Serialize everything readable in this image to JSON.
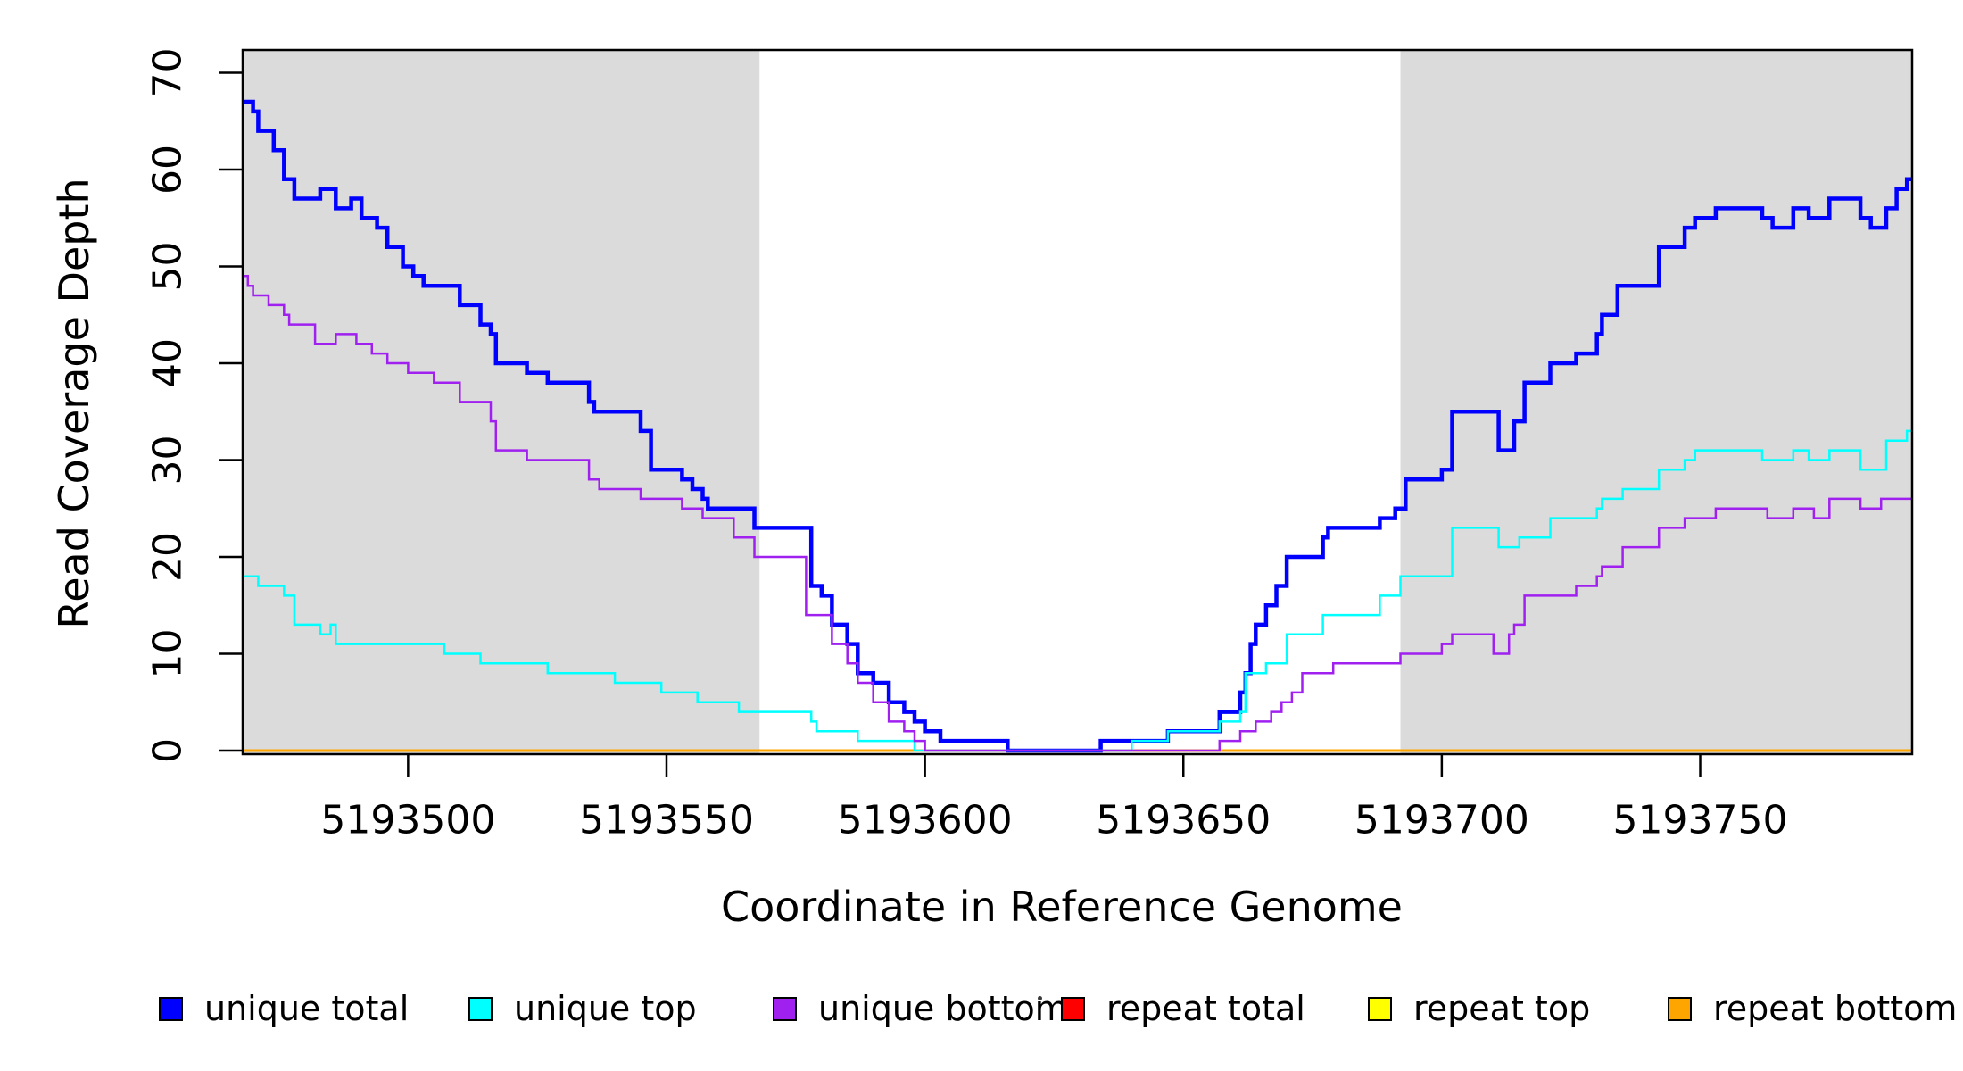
{
  "chart_data": {
    "type": "line",
    "subtype": "step-after",
    "title": "",
    "x_axis": {
      "label": "Coordinate in Reference Genome",
      "range": [
        5193468,
        5193791
      ],
      "ticks": [
        5193500,
        5193550,
        5193600,
        5193650,
        5193700,
        5193750
      ]
    },
    "y_axis": {
      "label": "Read Coverage Depth",
      "range": [
        -0.37,
        72.35
      ],
      "ticks": [
        0,
        10,
        20,
        30,
        40,
        50,
        60,
        70
      ]
    },
    "grid": "off",
    "plot_background": "#ffffff",
    "shaded_band_color": "#dbdbdb",
    "shaded_regions": [
      {
        "from": 5193468,
        "to": 5193568
      },
      {
        "from": 5193692,
        "to": 5193791
      }
    ],
    "axis_color": "#000000",
    "legend_position": "bottom",
    "draw_order": [
      "repeat total",
      "repeat top",
      "repeat bottom",
      "unique total",
      "unique top",
      "unique bottom"
    ],
    "series": [
      {
        "name": "unique total",
        "color": "#0000ff",
        "line_width": 4.5,
        "points": [
          [
            5193468,
            67
          ],
          [
            5193470,
            66
          ],
          [
            5193471,
            64
          ],
          [
            5193474,
            62
          ],
          [
            5193476,
            59
          ],
          [
            5193478,
            57
          ],
          [
            5193483,
            58
          ],
          [
            5193486,
            56
          ],
          [
            5193489,
            57
          ],
          [
            5193491,
            55
          ],
          [
            5193494,
            54
          ],
          [
            5193496,
            52
          ],
          [
            5193499,
            50
          ],
          [
            5193501,
            49
          ],
          [
            5193503,
            48
          ],
          [
            5193510,
            46
          ],
          [
            5193514,
            44
          ],
          [
            5193516,
            43
          ],
          [
            5193517,
            40
          ],
          [
            5193523,
            39
          ],
          [
            5193527,
            38
          ],
          [
            5193535,
            36
          ],
          [
            5193536,
            35
          ],
          [
            5193545,
            33
          ],
          [
            5193547,
            29
          ],
          [
            5193553,
            28
          ],
          [
            5193555,
            27
          ],
          [
            5193557,
            26
          ],
          [
            5193558,
            25
          ],
          [
            5193567,
            23
          ],
          [
            5193578,
            17
          ],
          [
            5193580,
            16
          ],
          [
            5193582,
            13
          ],
          [
            5193585,
            11
          ],
          [
            5193587,
            8
          ],
          [
            5193590,
            7
          ],
          [
            5193593,
            5
          ],
          [
            5193596,
            4
          ],
          [
            5193598,
            3
          ],
          [
            5193600,
            2
          ],
          [
            5193603,
            1
          ],
          [
            5193616,
            0
          ],
          [
            5193634,
            1
          ],
          [
            5193647,
            2
          ],
          [
            5193657,
            4
          ],
          [
            5193661,
            6
          ],
          [
            5193662,
            8
          ],
          [
            5193663,
            11
          ],
          [
            5193664,
            13
          ],
          [
            5193666,
            15
          ],
          [
            5193668,
            17
          ],
          [
            5193670,
            20
          ],
          [
            5193677,
            22
          ],
          [
            5193678,
            23
          ],
          [
            5193688,
            24
          ],
          [
            5193691,
            25
          ],
          [
            5193693,
            28
          ],
          [
            5193700,
            29
          ],
          [
            5193702,
            35
          ],
          [
            5193711,
            31
          ],
          [
            5193714,
            34
          ],
          [
            5193716,
            38
          ],
          [
            5193721,
            40
          ],
          [
            5193726,
            41
          ],
          [
            5193730,
            43
          ],
          [
            5193731,
            45
          ],
          [
            5193734,
            48
          ],
          [
            5193742,
            52
          ],
          [
            5193747,
            54
          ],
          [
            5193749,
            55
          ],
          [
            5193753,
            56
          ],
          [
            5193762,
            55
          ],
          [
            5193764,
            54
          ],
          [
            5193768,
            56
          ],
          [
            5193771,
            55
          ],
          [
            5193775,
            57
          ],
          [
            5193781,
            55
          ],
          [
            5193783,
            54
          ],
          [
            5193786,
            56
          ],
          [
            5193788,
            58
          ],
          [
            5193790,
            59
          ],
          [
            5193791,
            59
          ]
        ]
      },
      {
        "name": "unique top",
        "color": "#00ffff",
        "line_width": 2.5,
        "points": [
          [
            5193468,
            18
          ],
          [
            5193471,
            17
          ],
          [
            5193476,
            16
          ],
          [
            5193478,
            13
          ],
          [
            5193483,
            12
          ],
          [
            5193485,
            13
          ],
          [
            5193486,
            11
          ],
          [
            5193507,
            10
          ],
          [
            5193514,
            9
          ],
          [
            5193527,
            8
          ],
          [
            5193540,
            7
          ],
          [
            5193549,
            6
          ],
          [
            5193556,
            5
          ],
          [
            5193564,
            4
          ],
          [
            5193578,
            3
          ],
          [
            5193579,
            2
          ],
          [
            5193587,
            1
          ],
          [
            5193598,
            0
          ],
          [
            5193640,
            1
          ],
          [
            5193647,
            2
          ],
          [
            5193657,
            3
          ],
          [
            5193661,
            4
          ],
          [
            5193662,
            8
          ],
          [
            5193666,
            9
          ],
          [
            5193670,
            12
          ],
          [
            5193677,
            14
          ],
          [
            5193688,
            16
          ],
          [
            5193692,
            18
          ],
          [
            5193702,
            23
          ],
          [
            5193711,
            21
          ],
          [
            5193715,
            22
          ],
          [
            5193721,
            24
          ],
          [
            5193730,
            25
          ],
          [
            5193731,
            26
          ],
          [
            5193735,
            27
          ],
          [
            5193742,
            29
          ],
          [
            5193747,
            30
          ],
          [
            5193749,
            31
          ],
          [
            5193762,
            30
          ],
          [
            5193768,
            31
          ],
          [
            5193771,
            30
          ],
          [
            5193775,
            31
          ],
          [
            5193781,
            29
          ],
          [
            5193786,
            32
          ],
          [
            5193790,
            33
          ],
          [
            5193791,
            33
          ]
        ]
      },
      {
        "name": "unique bottom",
        "color": "#a020f0",
        "line_width": 2.5,
        "points": [
          [
            5193468,
            49
          ],
          [
            5193469,
            48
          ],
          [
            5193470,
            47
          ],
          [
            5193473,
            46
          ],
          [
            5193476,
            45
          ],
          [
            5193477,
            44
          ],
          [
            5193482,
            42
          ],
          [
            5193486,
            43
          ],
          [
            5193490,
            42
          ],
          [
            5193493,
            41
          ],
          [
            5193496,
            40
          ],
          [
            5193500,
            39
          ],
          [
            5193505,
            38
          ],
          [
            5193510,
            36
          ],
          [
            5193516,
            34
          ],
          [
            5193517,
            31
          ],
          [
            5193523,
            30
          ],
          [
            5193535,
            28
          ],
          [
            5193537,
            27
          ],
          [
            5193545,
            26
          ],
          [
            5193553,
            25
          ],
          [
            5193557,
            24
          ],
          [
            5193563,
            22
          ],
          [
            5193567,
            20
          ],
          [
            5193577,
            14
          ],
          [
            5193582,
            11
          ],
          [
            5193585,
            9
          ],
          [
            5193587,
            7
          ],
          [
            5193590,
            5
          ],
          [
            5193593,
            3
          ],
          [
            5193596,
            2
          ],
          [
            5193598,
            1
          ],
          [
            5193600,
            0
          ],
          [
            5193657,
            1
          ],
          [
            5193661,
            2
          ],
          [
            5193664,
            3
          ],
          [
            5193667,
            4
          ],
          [
            5193669,
            5
          ],
          [
            5193671,
            6
          ],
          [
            5193673,
            8
          ],
          [
            5193679,
            9
          ],
          [
            5193692,
            10
          ],
          [
            5193700,
            11
          ],
          [
            5193702,
            12
          ],
          [
            5193710,
            10
          ],
          [
            5193713,
            12
          ],
          [
            5193714,
            13
          ],
          [
            5193716,
            16
          ],
          [
            5193726,
            17
          ],
          [
            5193730,
            18
          ],
          [
            5193731,
            19
          ],
          [
            5193735,
            21
          ],
          [
            5193742,
            23
          ],
          [
            5193747,
            24
          ],
          [
            5193753,
            25
          ],
          [
            5193763,
            24
          ],
          [
            5193768,
            25
          ],
          [
            5193772,
            24
          ],
          [
            5193775,
            26
          ],
          [
            5193781,
            25
          ],
          [
            5193785,
            26
          ],
          [
            5193791,
            26
          ]
        ]
      },
      {
        "name": "repeat total",
        "color": "#ff0000",
        "line_width": 2.5,
        "points": [
          [
            5193468,
            0
          ],
          [
            5193791,
            0
          ]
        ]
      },
      {
        "name": "repeat top",
        "color": "#ffff00",
        "line_width": 2.5,
        "points": [
          [
            5193468,
            0
          ],
          [
            5193791,
            0
          ]
        ]
      },
      {
        "name": "repeat bottom",
        "color": "#ffa500",
        "line_width": 3,
        "points": [
          [
            5193468,
            0
          ],
          [
            5193791,
            0
          ]
        ]
      }
    ],
    "legend": [
      {
        "label": "unique total",
        "color": "#0000ff"
      },
      {
        "label": "unique top",
        "color": "#00ffff"
      },
      {
        "label": "unique bottom",
        "color": "#a020f0"
      },
      {
        "label": "repeat total",
        "color": "#ff0000"
      },
      {
        "label": "repeat top",
        "color": "#ffff00"
      },
      {
        "label": "repeat bottom",
        "color": "#ffa500"
      }
    ]
  }
}
